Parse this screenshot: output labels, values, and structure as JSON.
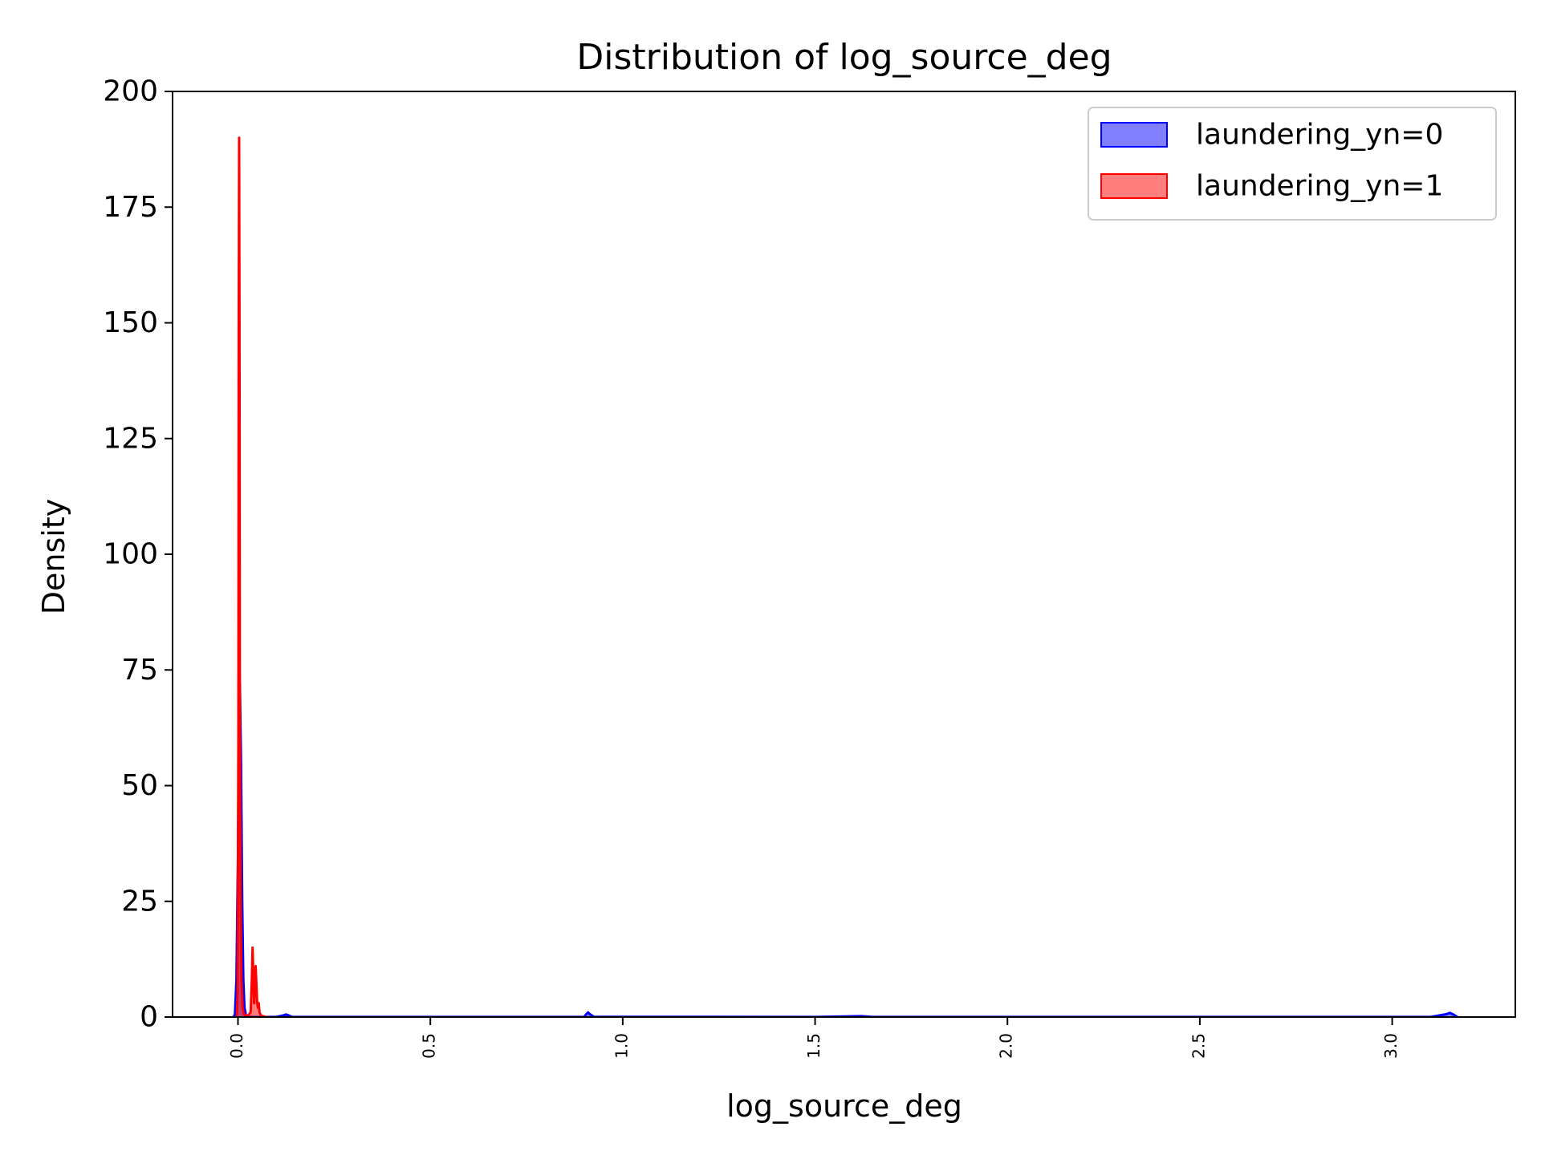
{
  "chart_data": {
    "type": "area",
    "title": "Distribution of log_source_deg",
    "xlabel": "log_source_deg",
    "ylabel": "Density",
    "xlim": [
      -0.17,
      3.32
    ],
    "ylim": [
      0,
      200
    ],
    "x_ticks": [
      0.0,
      0.5,
      1.0,
      1.5,
      2.0,
      2.5,
      3.0
    ],
    "x_tick_labels": [
      "0.0",
      "0.5",
      "1.0",
      "1.5",
      "2.0",
      "2.5",
      "3.0"
    ],
    "y_ticks": [
      0,
      25,
      50,
      75,
      100,
      125,
      150,
      175,
      200
    ],
    "y_tick_labels": [
      "0",
      "25",
      "50",
      "75",
      "100",
      "125",
      "150",
      "175",
      "200"
    ],
    "x_tick_rotation": 90,
    "grid": false,
    "legend_position": "top-right",
    "series": [
      {
        "name": "laundering_yn=0",
        "color": "#0000ff",
        "points": [
          [
            -0.012,
            0
          ],
          [
            -0.008,
            0.5
          ],
          [
            -0.004,
            8
          ],
          [
            0.0,
            35
          ],
          [
            0.003,
            65
          ],
          [
            0.005,
            72
          ],
          [
            0.008,
            55
          ],
          [
            0.011,
            25
          ],
          [
            0.014,
            8
          ],
          [
            0.017,
            2
          ],
          [
            0.021,
            0.3
          ],
          [
            0.03,
            0.05
          ],
          [
            0.1,
            0.02
          ],
          [
            0.12,
            0.4
          ],
          [
            0.125,
            0.55
          ],
          [
            0.13,
            0.4
          ],
          [
            0.14,
            0.05
          ],
          [
            0.2,
            0.02
          ],
          [
            0.9,
            0.02
          ],
          [
            0.905,
            0.6
          ],
          [
            0.91,
            1.0
          ],
          [
            0.915,
            0.6
          ],
          [
            0.925,
            0.05
          ],
          [
            1.5,
            0.02
          ],
          [
            1.62,
            0.2
          ],
          [
            1.65,
            0.02
          ],
          [
            3.1,
            0.02
          ],
          [
            3.14,
            0.6
          ],
          [
            3.15,
            0.9
          ],
          [
            3.16,
            0.5
          ],
          [
            3.17,
            0
          ]
        ]
      },
      {
        "name": "laundering_yn=1",
        "color": "#ff0000",
        "points": [
          [
            -0.003,
            0
          ],
          [
            -0.001,
            5
          ],
          [
            0.001,
            60
          ],
          [
            0.002,
            150
          ],
          [
            0.003,
            190
          ],
          [
            0.004,
            150
          ],
          [
            0.005,
            70
          ],
          [
            0.007,
            25
          ],
          [
            0.009,
            8
          ],
          [
            0.012,
            2
          ],
          [
            0.016,
            0.5
          ],
          [
            0.025,
            0.2
          ],
          [
            0.033,
            1
          ],
          [
            0.036,
            8
          ],
          [
            0.038,
            15
          ],
          [
            0.04,
            9
          ],
          [
            0.042,
            3
          ],
          [
            0.044,
            6
          ],
          [
            0.046,
            11
          ],
          [
            0.048,
            7
          ],
          [
            0.05,
            3
          ],
          [
            0.052,
            2
          ],
          [
            0.054,
            3
          ],
          [
            0.056,
            1
          ],
          [
            0.06,
            0.3
          ],
          [
            0.07,
            0.05
          ],
          [
            0.08,
            0
          ]
        ]
      }
    ]
  }
}
